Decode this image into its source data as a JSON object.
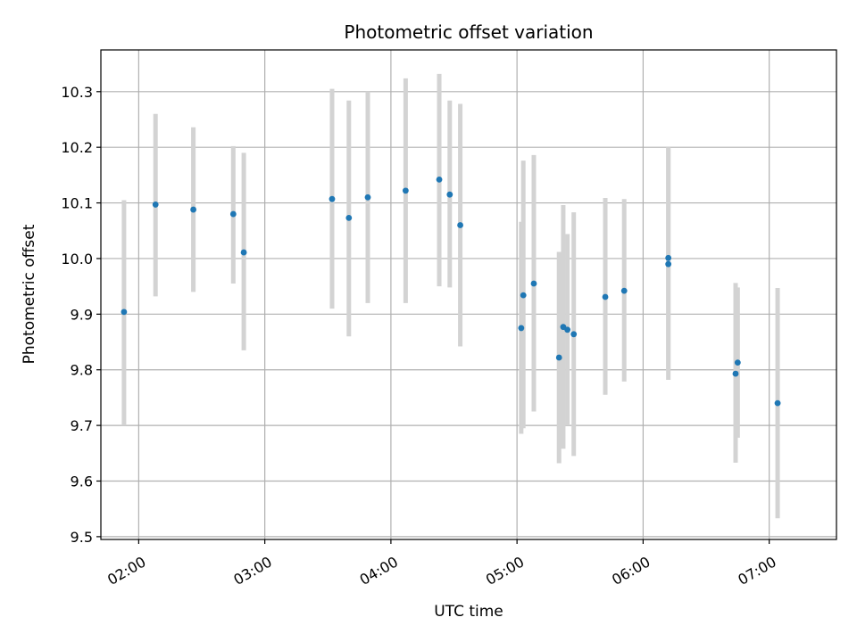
{
  "chart_data": {
    "type": "scatter",
    "title": "Photometric offset variation",
    "xlabel": "UTC time",
    "ylabel": "Photometric offset",
    "grid": true,
    "x_unit": "UTC time (HH:MM)",
    "xlim": [
      "01:42",
      "07:32"
    ],
    "ylim": [
      9.495,
      10.375
    ],
    "x_ticks": [
      "02:00",
      "03:00",
      "04:00",
      "05:00",
      "06:00",
      "07:00"
    ],
    "y_ticks": [
      "9.5",
      "9.6",
      "9.7",
      "9.8",
      "9.9",
      "10.0",
      "10.1",
      "10.2",
      "10.3"
    ],
    "marker_color": "#1f77b4",
    "errorbar_color": "#d3d3d3",
    "points": [
      {
        "x": "01:53",
        "y": 9.904,
        "y_low": 9.7,
        "y_high": 10.105
      },
      {
        "x": "02:08",
        "y": 10.097,
        "y_low": 9.932,
        "y_high": 10.26
      },
      {
        "x": "02:26",
        "y": 10.088,
        "y_low": 9.94,
        "y_high": 10.236
      },
      {
        "x": "02:45",
        "y": 10.08,
        "y_low": 9.955,
        "y_high": 10.202
      },
      {
        "x": "02:50",
        "y": 10.011,
        "y_low": 9.835,
        "y_high": 10.19
      },
      {
        "x": "03:32",
        "y": 10.107,
        "y_low": 9.91,
        "y_high": 10.305
      },
      {
        "x": "03:40",
        "y": 10.073,
        "y_low": 9.86,
        "y_high": 10.284
      },
      {
        "x": "03:49",
        "y": 10.11,
        "y_low": 9.92,
        "y_high": 10.3
      },
      {
        "x": "04:07",
        "y": 10.122,
        "y_low": 9.92,
        "y_high": 10.324
      },
      {
        "x": "04:23",
        "y": 10.142,
        "y_low": 9.95,
        "y_high": 10.332
      },
      {
        "x": "04:28",
        "y": 10.115,
        "y_low": 9.948,
        "y_high": 10.284
      },
      {
        "x": "04:33",
        "y": 10.06,
        "y_low": 9.842,
        "y_high": 10.278
      },
      {
        "x": "05:02",
        "y": 9.875,
        "y_low": 9.685,
        "y_high": 10.066
      },
      {
        "x": "05:03",
        "y": 9.934,
        "y_low": 9.695,
        "y_high": 10.176
      },
      {
        "x": "05:08",
        "y": 9.955,
        "y_low": 9.725,
        "y_high": 10.186
      },
      {
        "x": "05:20",
        "y": 9.822,
        "y_low": 9.632,
        "y_high": 10.012
      },
      {
        "x": "05:22",
        "y": 9.877,
        "y_low": 9.658,
        "y_high": 10.096
      },
      {
        "x": "05:24",
        "y": 9.872,
        "y_low": 9.7,
        "y_high": 10.044
      },
      {
        "x": "05:27",
        "y": 9.864,
        "y_low": 9.645,
        "y_high": 10.083
      },
      {
        "x": "05:42",
        "y": 9.931,
        "y_low": 9.755,
        "y_high": 10.109
      },
      {
        "x": "05:51",
        "y": 9.942,
        "y_low": 9.779,
        "y_high": 10.107
      },
      {
        "x": "06:12",
        "y": 9.99,
        "y_low": 9.782,
        "y_high": 10.198
      },
      {
        "x": "06:12",
        "y": 10.001,
        "y_low": 9.8,
        "y_high": 10.2
      },
      {
        "x": "06:44",
        "y": 9.793,
        "y_low": 9.633,
        "y_high": 9.956
      },
      {
        "x": "06:45",
        "y": 9.813,
        "y_low": 9.678,
        "y_high": 9.948
      },
      {
        "x": "07:04",
        "y": 9.74,
        "y_low": 9.533,
        "y_high": 9.947
      }
    ]
  }
}
